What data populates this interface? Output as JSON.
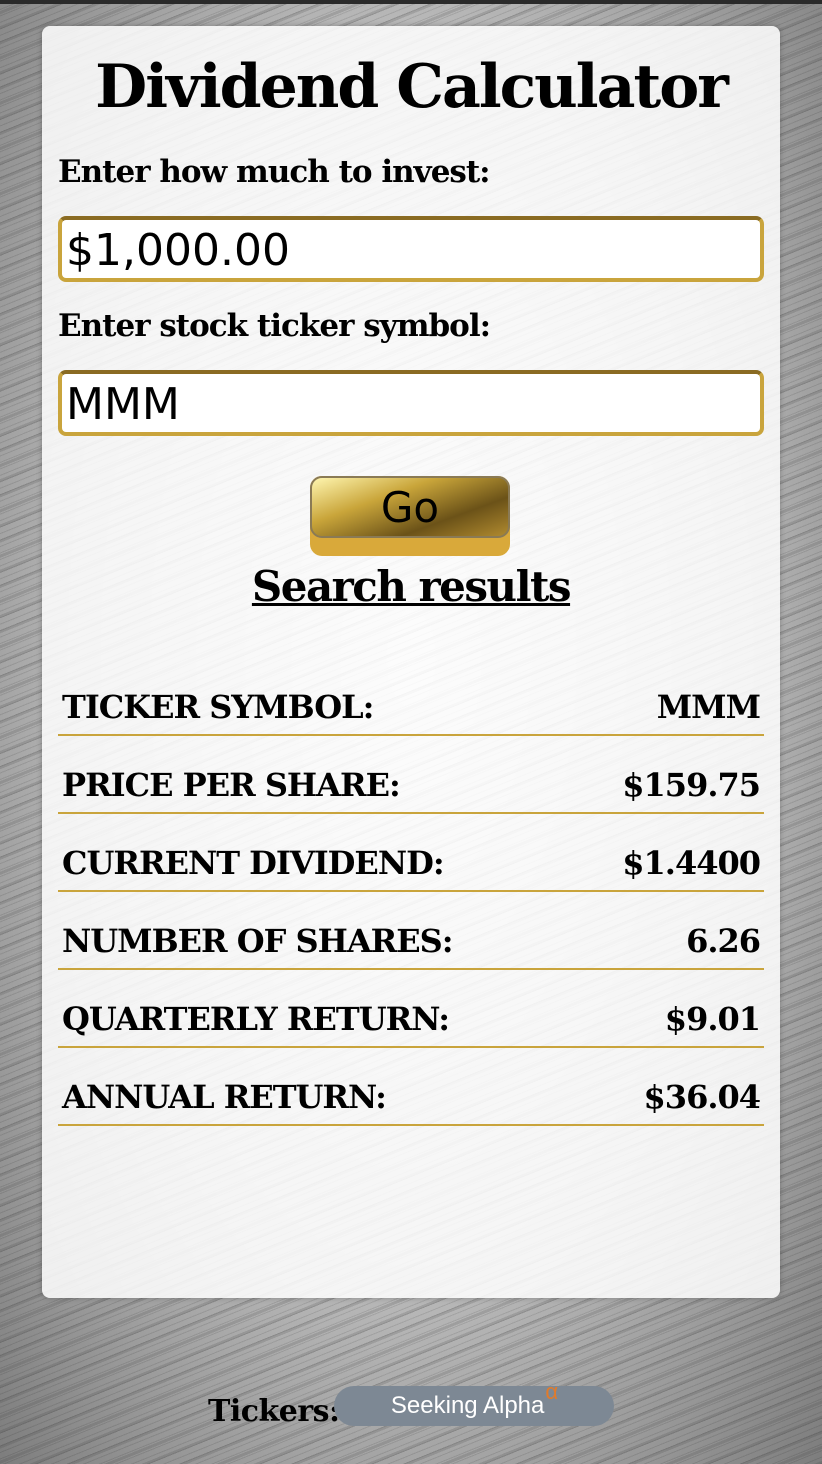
{
  "app": {
    "title": "Dividend Calculator"
  },
  "form": {
    "invest_label": "Enter how much to invest:",
    "invest_value": "$1,000.00",
    "ticker_label": "Enter stock ticker symbol:",
    "ticker_value": "MMM",
    "go_label": "Go"
  },
  "results": {
    "heading": "Search results",
    "rows": [
      {
        "label": "TICKER SYMBOL:",
        "value": "MMM"
      },
      {
        "label": "PRICE PER SHARE:",
        "value": "$159.75"
      },
      {
        "label": "CURRENT DIVIDEND:",
        "value": "$1.4400"
      },
      {
        "label": "NUMBER OF SHARES:",
        "value": "6.26"
      },
      {
        "label": "QUARTERLY RETURN:",
        "value": "$9.01"
      },
      {
        "label": "ANNUAL RETURN:",
        "value": "$36.04"
      }
    ]
  },
  "footer": {
    "tickers_label": "Tickers:",
    "source_label": "Seeking Alpha",
    "source_alpha": "α"
  },
  "colors": {
    "accent_gold": "#c9a43c",
    "pill_gray": "#7d8894",
    "alpha_orange": "#e07b2c"
  }
}
